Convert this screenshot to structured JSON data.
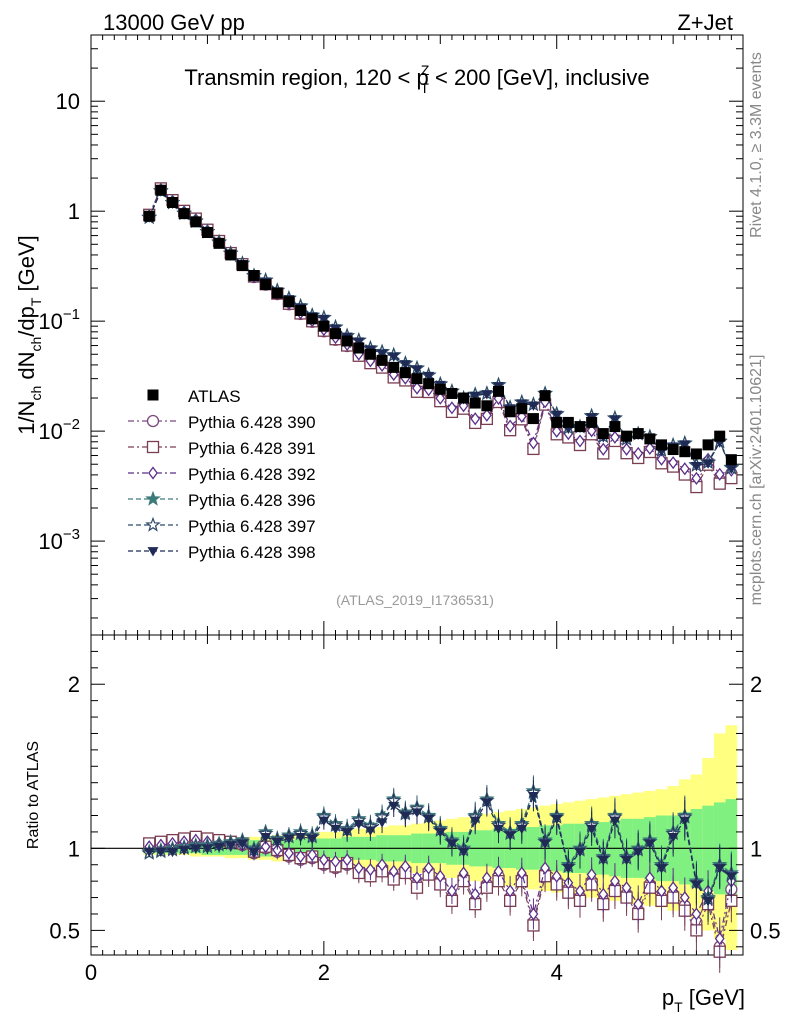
{
  "header": {
    "left": "13000 GeV pp",
    "right": "Z+Jet"
  },
  "side_text": {
    "rivet": "Rivet 4.1.0, ≥ 3.3M events",
    "mcplots": "mcplots.cern.ch [arXiv:2401.10621]"
  },
  "chart_data": {
    "type": "scatter",
    "title": "Transmin region, 120 < p_T^Z < 200 [GeV], inclusive",
    "title_parts": {
      "pre": "Transmin region, 120 < p",
      "sup": "Z",
      "sub": "T",
      "post": " < 200 [GeV], inclusive"
    },
    "watermark": "(ATLAS_2019_I1736531)",
    "xlabel": "p_T [GeV]",
    "xlabel_parts": {
      "main": "p",
      "sub": "T",
      "post": " [GeV]"
    },
    "ylabel": "1/N_ch dN_ch/dp_T [GeV]",
    "ylabel_parts": [
      "1/N",
      "ch",
      " dN",
      "ch",
      "/dp",
      "T",
      " [GeV]"
    ],
    "ratio_ylabel": "Ratio to ATLAS",
    "xlim": [
      0,
      5.6
    ],
    "ylim": [
      0.00014,
      40
    ],
    "ratio_ylim": [
      0.35,
      2.3
    ],
    "yscale": "log",
    "x_ticks": [
      0,
      2,
      4
    ],
    "y_tick_labels": [
      {
        "value": 10,
        "base": "10",
        "exp": ""
      },
      {
        "value": 1,
        "base": "1",
        "exp": ""
      },
      {
        "value": 0.1,
        "base": "10",
        "exp": "−1"
      },
      {
        "value": 0.01,
        "base": "10",
        "exp": "−2"
      },
      {
        "value": 0.001,
        "base": "10",
        "exp": "−3"
      }
    ],
    "ratio_ticks": [
      0.5,
      1,
      2
    ],
    "x": [
      0.5,
      0.6,
      0.7,
      0.8,
      0.9,
      1.0,
      1.1,
      1.2,
      1.3,
      1.4,
      1.5,
      1.6,
      1.7,
      1.8,
      1.9,
      2.0,
      2.1,
      2.2,
      2.3,
      2.4,
      2.5,
      2.6,
      2.7,
      2.8,
      2.9,
      3.0,
      3.1,
      3.2,
      3.3,
      3.4,
      3.5,
      3.6,
      3.7,
      3.8,
      3.9,
      4.0,
      4.1,
      4.2,
      4.3,
      4.4,
      4.5,
      4.6,
      4.7,
      4.8,
      4.9,
      5.0,
      5.1,
      5.2,
      5.3,
      5.4,
      5.5
    ],
    "data": {
      "name": "ATLAS",
      "values": [
        0.9,
        1.55,
        1.2,
        0.95,
        0.8,
        0.64,
        0.51,
        0.4,
        0.32,
        0.26,
        0.215,
        0.18,
        0.15,
        0.125,
        0.105,
        0.09,
        0.077,
        0.066,
        0.057,
        0.05,
        0.044,
        0.038,
        0.034,
        0.03,
        0.027,
        0.024,
        0.022,
        0.02,
        0.018,
        0.017,
        0.023,
        0.015,
        0.016,
        0.013,
        0.021,
        0.012,
        0.012,
        0.011,
        0.012,
        0.0095,
        0.011,
        0.009,
        0.0095,
        0.0085,
        0.0075,
        0.0068,
        0.0065,
        0.0062,
        0.0075,
        0.009,
        0.0055
      ]
    },
    "band": {
      "ratio_lo_inner": [
        0.97,
        0.97,
        0.97,
        0.97,
        0.97,
        0.96,
        0.96,
        0.96,
        0.96,
        0.95,
        0.95,
        0.95,
        0.95,
        0.94,
        0.94,
        0.94,
        0.94,
        0.93,
        0.93,
        0.93,
        0.92,
        0.92,
        0.92,
        0.91,
        0.91,
        0.91,
        0.9,
        0.9,
        0.89,
        0.89,
        0.88,
        0.88,
        0.87,
        0.87,
        0.86,
        0.86,
        0.85,
        0.85,
        0.84,
        0.84,
        0.83,
        0.82,
        0.82,
        0.81,
        0.8,
        0.8,
        0.78,
        0.76,
        0.74,
        0.72,
        0.7
      ],
      "ratio_hi_inner": [
        1.03,
        1.03,
        1.03,
        1.03,
        1.03,
        1.04,
        1.04,
        1.04,
        1.04,
        1.05,
        1.05,
        1.05,
        1.05,
        1.06,
        1.06,
        1.06,
        1.06,
        1.07,
        1.07,
        1.07,
        1.08,
        1.08,
        1.08,
        1.09,
        1.09,
        1.09,
        1.1,
        1.1,
        1.11,
        1.11,
        1.12,
        1.12,
        1.13,
        1.13,
        1.14,
        1.14,
        1.15,
        1.15,
        1.16,
        1.16,
        1.17,
        1.18,
        1.18,
        1.19,
        1.2,
        1.2,
        1.22,
        1.24,
        1.26,
        1.28,
        1.3
      ],
      "ratio_lo_outer": [
        0.96,
        0.96,
        0.96,
        0.96,
        0.95,
        0.95,
        0.95,
        0.94,
        0.94,
        0.93,
        0.93,
        0.92,
        0.92,
        0.91,
        0.91,
        0.9,
        0.9,
        0.89,
        0.88,
        0.88,
        0.87,
        0.86,
        0.86,
        0.85,
        0.84,
        0.83,
        0.82,
        0.81,
        0.8,
        0.79,
        0.78,
        0.77,
        0.76,
        0.75,
        0.74,
        0.73,
        0.72,
        0.71,
        0.7,
        0.69,
        0.68,
        0.67,
        0.66,
        0.65,
        0.64,
        0.62,
        0.6,
        0.57,
        0.5,
        0.45,
        0.38
      ],
      "ratio_hi_outer": [
        1.04,
        1.04,
        1.04,
        1.04,
        1.05,
        1.05,
        1.05,
        1.06,
        1.06,
        1.07,
        1.07,
        1.08,
        1.08,
        1.09,
        1.09,
        1.1,
        1.1,
        1.11,
        1.12,
        1.12,
        1.13,
        1.14,
        1.14,
        1.15,
        1.16,
        1.17,
        1.18,
        1.19,
        1.2,
        1.21,
        1.22,
        1.23,
        1.24,
        1.25,
        1.26,
        1.27,
        1.28,
        1.29,
        1.3,
        1.31,
        1.32,
        1.33,
        1.34,
        1.35,
        1.36,
        1.38,
        1.42,
        1.45,
        1.55,
        1.7,
        1.75
      ]
    },
    "series": [
      {
        "name": "Pythia 6.428 390",
        "color": "#7b4a7e",
        "marker": "circle-open",
        "dash": "dashdot",
        "ratio": [
          1.02,
          1.03,
          1.04,
          1.05,
          1.06,
          1.05,
          1.04,
          1.03,
          1.02,
          0.97,
          1.0,
          0.98,
          0.95,
          0.93,
          0.94,
          0.9,
          0.88,
          0.9,
          0.86,
          0.85,
          0.88,
          0.83,
          0.87,
          0.78,
          0.86,
          0.8,
          0.7,
          0.82,
          0.68,
          0.78,
          0.83,
          0.7,
          0.82,
          0.55,
          0.85,
          0.8,
          0.75,
          0.7,
          0.8,
          0.68,
          0.76,
          0.72,
          0.62,
          0.78,
          0.7,
          0.72,
          0.65,
          0.55,
          0.7,
          0.4,
          0.75
        ]
      },
      {
        "name": "Pythia 6.428 391",
        "color": "#7a3d52",
        "marker": "square-open",
        "dash": "dashdot",
        "ratio": [
          1.03,
          1.04,
          1.05,
          1.06,
          1.07,
          1.06,
          1.05,
          1.04,
          1.03,
          0.98,
          1.01,
          0.99,
          0.96,
          0.94,
          0.95,
          0.91,
          0.89,
          0.91,
          0.85,
          0.83,
          0.86,
          0.81,
          0.85,
          0.76,
          0.84,
          0.78,
          0.68,
          0.8,
          0.66,
          0.76,
          0.8,
          0.68,
          0.8,
          0.53,
          0.83,
          0.78,
          0.73,
          0.68,
          0.78,
          0.66,
          0.74,
          0.7,
          0.6,
          0.76,
          0.68,
          0.7,
          0.62,
          0.5,
          0.66,
          0.37,
          0.68
        ]
      },
      {
        "name": "Pythia 6.428 392",
        "color": "#5b2f8a",
        "marker": "diamond-open",
        "dash": "dashdot",
        "ratio": [
          1.01,
          1.02,
          1.03,
          1.04,
          1.05,
          1.04,
          1.03,
          1.02,
          1.02,
          0.98,
          1.01,
          0.99,
          0.97,
          0.95,
          0.96,
          0.93,
          0.92,
          0.93,
          0.88,
          0.87,
          0.9,
          0.86,
          0.89,
          0.82,
          0.88,
          0.83,
          0.74,
          0.85,
          0.72,
          0.82,
          0.86,
          0.74,
          0.85,
          0.6,
          0.88,
          0.83,
          0.79,
          0.74,
          0.84,
          0.72,
          0.8,
          0.76,
          0.66,
          0.82,
          0.74,
          0.76,
          0.7,
          0.6,
          0.74,
          0.45,
          0.8
        ]
      },
      {
        "name": "Pythia 6.428 396",
        "color": "#3d7a7a",
        "marker": "star-filled",
        "dash": "dashed",
        "ratio": [
          0.98,
          0.99,
          1.0,
          1.01,
          1.02,
          1.02,
          1.03,
          1.04,
          1.05,
          1.0,
          1.1,
          1.06,
          1.08,
          1.1,
          1.08,
          1.2,
          1.15,
          1.12,
          1.18,
          1.14,
          1.2,
          1.3,
          1.22,
          1.25,
          1.2,
          1.12,
          1.05,
          1.0,
          1.2,
          1.3,
          1.15,
          1.1,
          1.15,
          1.35,
          1.05,
          1.2,
          0.9,
          1.0,
          1.15,
          0.95,
          1.2,
          0.95,
          1.0,
          1.05,
          0.9,
          1.1,
          1.2,
          0.8,
          0.7,
          0.9,
          0.85
        ]
      },
      {
        "name": "Pythia 6.428 397",
        "color": "#2f4a6a",
        "marker": "star-open",
        "dash": "dashed",
        "ratio": [
          0.97,
          0.98,
          0.99,
          1.0,
          1.01,
          1.01,
          1.02,
          1.03,
          1.04,
          0.99,
          1.09,
          1.05,
          1.07,
          1.09,
          1.07,
          1.19,
          1.14,
          1.11,
          1.17,
          1.13,
          1.19,
          1.29,
          1.21,
          1.24,
          1.19,
          1.11,
          1.04,
          0.99,
          1.19,
          1.29,
          1.14,
          1.09,
          1.14,
          1.34,
          1.04,
          1.19,
          0.89,
          0.99,
          1.14,
          0.94,
          1.19,
          0.94,
          0.99,
          1.04,
          0.89,
          1.09,
          1.19,
          0.79,
          0.69,
          0.89,
          0.84
        ]
      },
      {
        "name": "Pythia 6.428 398",
        "color": "#1f2a55",
        "marker": "triangle-down-filled",
        "dash": "dashed",
        "ratio": [
          0.98,
          0.98,
          0.98,
          0.99,
          1.0,
          1.0,
          1.01,
          1.02,
          1.03,
          0.98,
          1.07,
          1.04,
          1.06,
          1.07,
          1.06,
          1.17,
          1.12,
          1.1,
          1.15,
          1.11,
          1.16,
          1.26,
          1.2,
          1.22,
          1.18,
          1.1,
          1.03,
          0.98,
          1.17,
          1.28,
          1.12,
          1.08,
          1.12,
          1.32,
          1.03,
          1.18,
          0.88,
          0.98,
          1.12,
          0.93,
          1.17,
          0.93,
          0.98,
          1.03,
          0.88,
          1.07,
          1.17,
          0.78,
          0.68,
          0.88,
          0.83
        ]
      }
    ]
  }
}
